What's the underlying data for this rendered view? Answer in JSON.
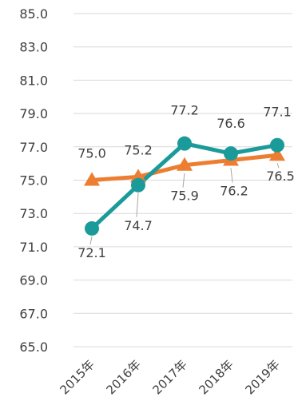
{
  "chart_data": {
    "type": "line",
    "categories": [
      "2015年",
      "2016年",
      "2017年",
      "2018年",
      "2019年"
    ],
    "ylim": [
      65.0,
      85.0
    ],
    "ytick_step": 2.0,
    "ytick_labels": [
      "65.0",
      "67.0",
      "69.0",
      "71.0",
      "73.0",
      "75.0",
      "77.0",
      "79.0",
      "81.0",
      "83.0",
      "85.0"
    ],
    "grid": true,
    "legend": "none",
    "title": "",
    "xlabel": "",
    "ylabel": "",
    "series": [
      {
        "color": "#ED7D31",
        "marker": "triangle",
        "values": [
          75.0,
          75.2,
          75.9,
          76.2,
          76.5
        ],
        "labels": [
          "75.0",
          "75.2",
          "75.9",
          "76.2",
          "76.5"
        ]
      },
      {
        "color": "#1B9A9A",
        "marker": "circle",
        "values": [
          72.1,
          74.7,
          77.2,
          76.6,
          77.1
        ],
        "labels": [
          "72.1",
          "74.7",
          "77.2",
          "76.6",
          "77.1"
        ]
      }
    ]
  }
}
